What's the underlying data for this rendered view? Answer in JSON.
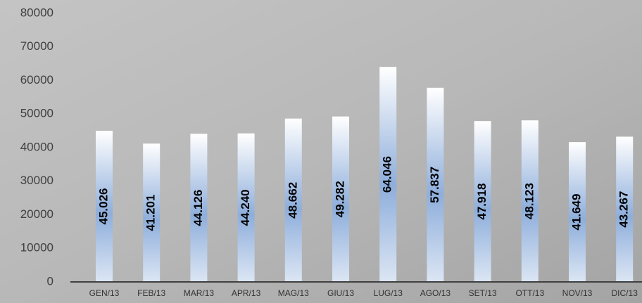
{
  "chart_data": {
    "type": "bar",
    "categories": [
      "GEN/13",
      "FEB/13",
      "MAR/13",
      "APR/13",
      "MAG/13",
      "GIU/13",
      "LUG/13",
      "AGO/13",
      "SET/13",
      "OTT/13",
      "NOV/13",
      "DIC/13"
    ],
    "values": [
      45026,
      41201,
      44126,
      44240,
      48662,
      49282,
      64046,
      57837,
      47918,
      48123,
      41649,
      43267
    ],
    "value_labels": [
      "45.026",
      "41.201",
      "44.126",
      "44.240",
      "48.662",
      "49.282",
      "64.046",
      "57.837",
      "47.918",
      "48.123",
      "41.649",
      "43.267"
    ],
    "color": "#8eaedb",
    "ylim": [
      0,
      80000
    ],
    "yticks": [
      0,
      10000,
      20000,
      30000,
      40000,
      50000,
      60000,
      70000,
      80000
    ]
  }
}
